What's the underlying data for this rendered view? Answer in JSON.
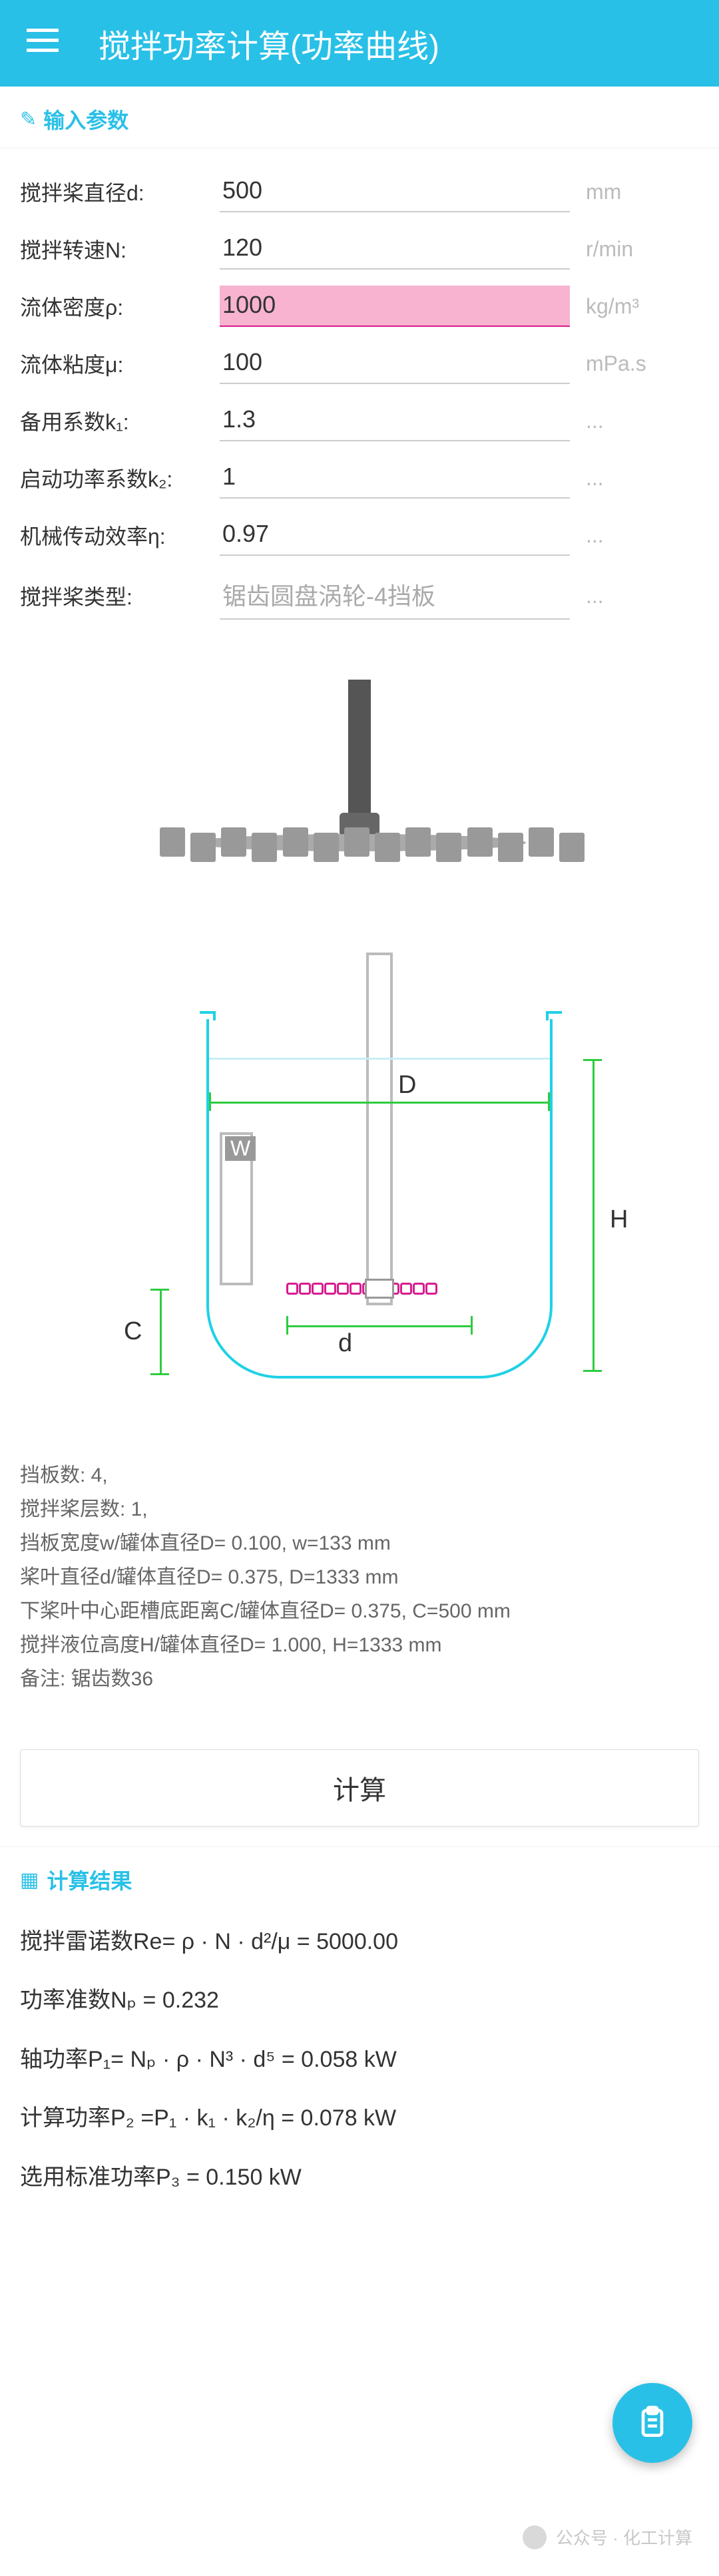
{
  "header": {
    "title": "搅拌功率计算(功率曲线)"
  },
  "sections": {
    "input": "输入参数",
    "results": "计算结果"
  },
  "form": {
    "rows": [
      {
        "label": "搅拌桨直径d:",
        "value": "500",
        "unit": "mm",
        "highlight": false
      },
      {
        "label": "搅拌转速N:",
        "value": "120",
        "unit": "r/min",
        "highlight": false
      },
      {
        "label": "流体密度ρ:",
        "value": "1000",
        "unit": "kg/m³",
        "highlight": true
      },
      {
        "label": "流体粘度μ:",
        "value": "100",
        "unit": "mPa.s",
        "highlight": false
      },
      {
        "label": "备用系数k₁:",
        "value": "1.3",
        "unit": "...",
        "highlight": false
      },
      {
        "label": "启动功率系数k₂:",
        "value": "1",
        "unit": "...",
        "highlight": false
      },
      {
        "label": "机械传动效率η:",
        "value": "0.97",
        "unit": "...",
        "highlight": false
      }
    ],
    "type_row": {
      "label": "搅拌桨类型:",
      "placeholder": "锯齿圆盘涡轮-4挡板",
      "unit": "..."
    }
  },
  "schematic": {
    "labels": {
      "W": "W",
      "D": "D",
      "H": "H",
      "C": "C",
      "d": "d"
    },
    "colors": {
      "cup": "#1fd1e6",
      "dim": "#2ecc40",
      "impeller": "#d81b8e",
      "shaft": "#bbbbbb"
    }
  },
  "specs": [
    "挡板数: 4,",
    "搅拌桨层数: 1,",
    "挡板宽度w/罐体直径D= 0.100,  w=133 mm",
    "桨叶直径d/罐体直径D= 0.375,  D=1333 mm",
    "下桨叶中心距槽底距离C/罐体直径D= 0.375,  C=500 mm",
    "搅拌液位高度H/罐体直径D= 1.000,  H=1333 mm",
    "备注: 锯齿数36"
  ],
  "calc_button": "计算",
  "results": {
    "lines": [
      "搅拌雷诺数Re= ρ · N · d²/μ = 5000.00",
      "功率准数Nₚ = 0.232",
      "轴功率P₁= Nₚ · ρ · N³ · d⁵ = 0.058 kW",
      "计算功率P₂ =P₁ · k₁ · k₂/η = 0.078 kW",
      "选用标准功率P₃ = 0.150 kW"
    ]
  },
  "watermark": "公众号 · 化工计算"
}
